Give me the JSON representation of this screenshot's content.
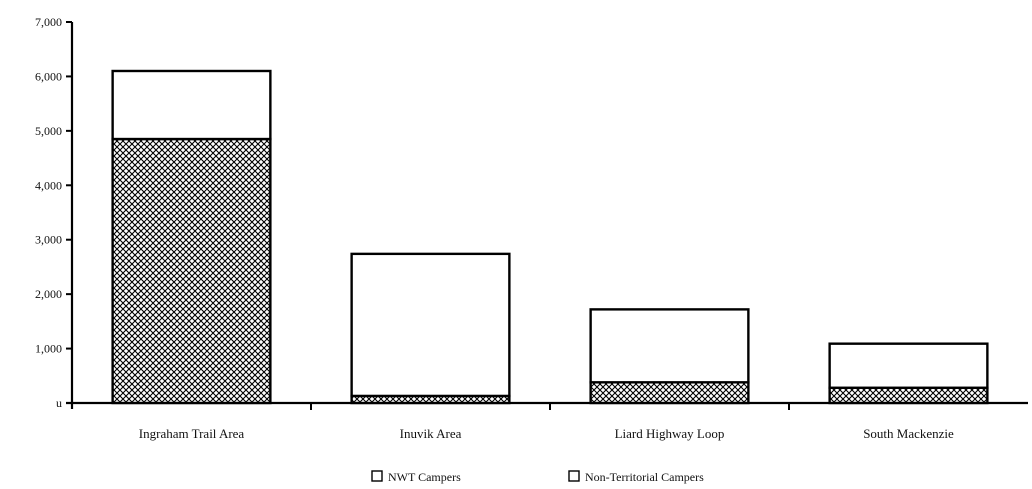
{
  "chart_data": {
    "type": "bar",
    "stacked": true,
    "title": "",
    "xlabel": "",
    "ylabel": "",
    "ylim": [
      0,
      7000
    ],
    "yticks": [
      0,
      1000,
      2000,
      3000,
      4000,
      5000,
      6000,
      7000
    ],
    "ytick_labels": [
      "u",
      "1,000",
      "2,000",
      "3,000",
      "4,000",
      "5,000",
      "6,000",
      "7,000"
    ],
    "grid": false,
    "legend_position": "bottom-center",
    "categories": [
      "Ingraham Trail Area",
      "Inuvik Area",
      "Liard Highway Loop",
      "South Mackenzie"
    ],
    "series": [
      {
        "name": "NWT Campers",
        "pattern": "crosshatch",
        "values": [
          4850,
          130,
          380,
          280
        ]
      },
      {
        "name": "Non-Territorial Campers",
        "pattern": "plain",
        "values": [
          1250,
          2610,
          1340,
          810
        ]
      }
    ],
    "colors": {
      "stroke": "#000000",
      "fill": "#ffffff"
    }
  }
}
